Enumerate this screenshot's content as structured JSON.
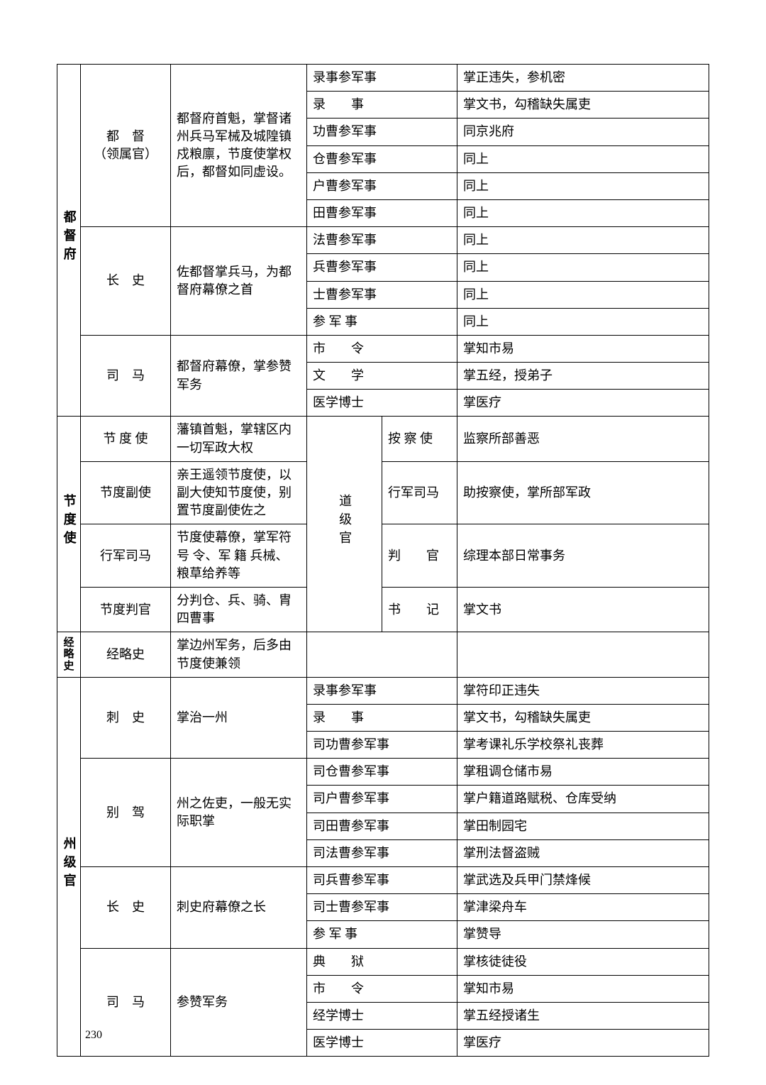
{
  "page_number": "230",
  "sections": [
    {
      "group_label": "都督府",
      "blocks": [
        {
          "col2": "都　督\n（领属官）",
          "col3": "都督府首魁，掌督诸州兵马军械及城隍镇戍粮廪，节度使掌权后，都督如同虚设。",
          "rows": [
            {
              "c4": "录事参军事",
              "c5": "掌正违失，参机密"
            },
            {
              "c4": "录　　事",
              "c5": "掌文书，勾稽缺失属吏"
            },
            {
              "c4": "功曹参军事",
              "c5": "同京兆府"
            },
            {
              "c4": "仓曹参军事",
              "c5": "同上"
            },
            {
              "c4": "户曹参军事",
              "c5": "同上"
            },
            {
              "c4": "田曹参军事",
              "c5": "同上"
            }
          ]
        },
        {
          "col2": "长　史",
          "col3": "佐都督掌兵马，为都督府幕僚之首",
          "rows": [
            {
              "c4": "法曹参军事",
              "c5": "同上"
            },
            {
              "c4": "兵曹参军事",
              "c5": "同上"
            },
            {
              "c4": "士曹参军事",
              "c5": "同上"
            },
            {
              "c4": "参 军 事",
              "c5": "同上"
            }
          ]
        },
        {
          "col2": "司　马",
          "col3": "都督府幕僚，掌参赞军务",
          "rows": [
            {
              "c4": "市　　令",
              "c5": "掌知市易"
            },
            {
              "c4": "文　　学",
              "c5": "掌五经，授弟子"
            },
            {
              "c4": "医学博士",
              "c5": "掌医疗"
            }
          ]
        }
      ]
    },
    {
      "group_label": "节度使",
      "mid_label": "道级官",
      "blocks": [
        {
          "col2": "节 度 使",
          "col3": "藩镇首魁，掌辖区内一切军政大权",
          "c4": "按 察 使",
          "c5": "监察所部善恶"
        },
        {
          "col2": "节度副使",
          "col3": "亲王遥领节度使，以副大使知节度使，别置节度副使佐之",
          "c4": "行军司马",
          "c5": "助按察使，掌所部军政"
        },
        {
          "col2": "行军司马",
          "col3": "节度使幕僚，掌军符 号 令、军 籍 兵械、粮草给养等",
          "c4": "判　　官",
          "c5": "综理本部日常事务"
        },
        {
          "col2": "节度判官",
          "col3": "分判仓、兵、骑、胄四曹事",
          "c4": "书　　记",
          "c5": "掌文书"
        }
      ]
    },
    {
      "group_label": "经略史",
      "single": {
        "col2": "经略史",
        "col3": "掌边州军务，后多由节度使兼领",
        "c4": "",
        "c5": ""
      }
    },
    {
      "group_label": "州级官",
      "blocks": [
        {
          "col2": "刺　史",
          "col3": "掌治一州",
          "rows": [
            {
              "c4": "录事参军事",
              "c5": "掌符印正违失"
            },
            {
              "c4": "录　　事",
              "c5": "掌文书，勾稽缺失属吏"
            },
            {
              "c4": "司功曹参军事",
              "c5": "掌考课礼乐学校祭礼丧葬"
            }
          ]
        },
        {
          "col2": "别　驾",
          "col3": "州之佐吏，一般无实际职掌",
          "rows": [
            {
              "c4": "司仓曹参军事",
              "c5": "掌租调仓储市易"
            },
            {
              "c4": "司户曹参军事",
              "c5": "掌户籍道路赋税、仓库受纳"
            },
            {
              "c4": "司田曹参军事",
              "c5": "掌田制园宅"
            },
            {
              "c4": "司法曹参军事",
              "c5": "掌刑法督盗贼"
            }
          ]
        },
        {
          "col2": "长　史",
          "col3": "刺史府幕僚之长",
          "rows": [
            {
              "c4": "司兵曹参军事",
              "c5": "掌武选及兵甲门禁烽候"
            },
            {
              "c4": "司士曹参军事",
              "c5": "掌津梁舟车"
            },
            {
              "c4": "参 军 事",
              "c5": "掌赞导"
            }
          ]
        },
        {
          "col2": "司　马",
          "col3": "参赞军务",
          "rows": [
            {
              "c4": "典　　狱",
              "c5": "掌核徒徒役"
            },
            {
              "c4": "市　　令",
              "c5": "掌知市易"
            },
            {
              "c4": "经学博士",
              "c5": "掌五经授诸生"
            },
            {
              "c4": "医学博士",
              "c5": "掌医疗"
            }
          ]
        }
      ]
    }
  ]
}
